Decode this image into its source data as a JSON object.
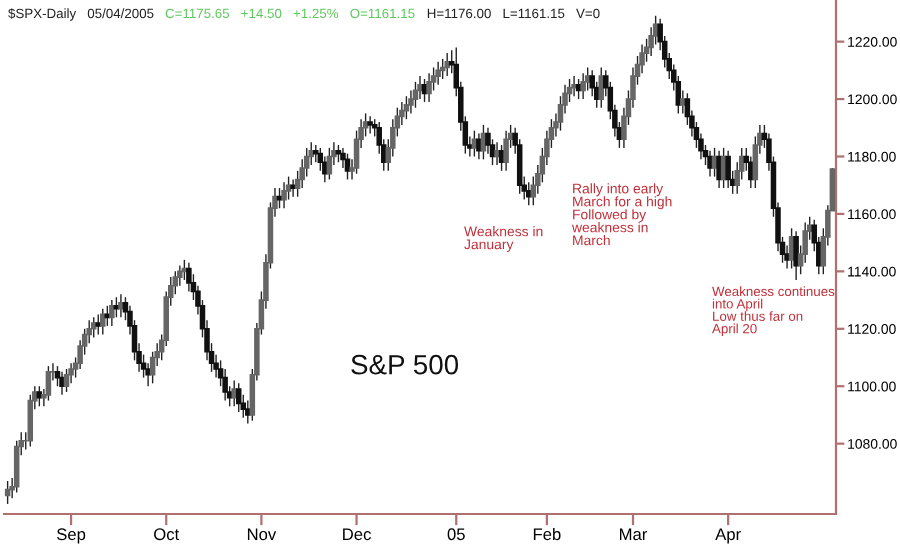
{
  "chart_data": {
    "type": "candlestick",
    "title": "$SPX-Daily   05/04/2005",
    "subtitle": "C=1175.65   +14.50   +1.25%   O=1161.15",
    "annotations": [
      "H=1176.00   L=1161.15   V=0",
      "S&P 500",
      "Weakness in\nJanuary",
      "Rally into early\nMarch for a high\nFollowed by\nweakness in\nMarch",
      "Weakness continues\ninto April\nLow thus far on\nApril 20"
    ],
    "categories": [
      null,
      null,
      null,
      null,
      null,
      null,
      null,
      null,
      null,
      null,
      null,
      null,
      null,
      null,
      "Sep",
      null,
      null,
      null,
      null,
      null,
      null,
      null,
      null,
      null,
      null,
      null,
      null,
      null,
      null,
      null,
      null,
      null,
      null,
      null,
      null,
      "Oct",
      null,
      null,
      null,
      null,
      null,
      null,
      null,
      null,
      null,
      null,
      null,
      null,
      null,
      null,
      null,
      null,
      null,
      null,
      null,
      null,
      "Nov",
      null,
      null,
      null,
      null,
      null,
      null,
      null,
      null,
      null,
      null,
      null,
      null,
      null,
      null,
      null,
      null,
      null,
      null,
      null,
      null,
      "Dec",
      null,
      null,
      null,
      null,
      null,
      null,
      null,
      null,
      null,
      null,
      null,
      null,
      null,
      null,
      null,
      null,
      null,
      null,
      null,
      null,
      null,
      "05",
      null,
      null,
      null,
      null,
      null,
      null,
      null,
      null,
      null,
      null,
      null,
      null,
      null,
      null,
      null,
      null,
      null,
      null,
      null,
      "Feb",
      null,
      null,
      null,
      null,
      null,
      null,
      null,
      null,
      null,
      null,
      null,
      null,
      null,
      null,
      null,
      null,
      null,
      null,
      "Mar",
      null,
      null,
      null,
      null,
      null,
      null,
      null,
      null,
      null,
      null,
      null,
      null,
      null,
      null,
      null,
      null,
      null,
      null,
      null,
      null,
      "Apr",
      null,
      null,
      null,
      null,
      null,
      null,
      null,
      null,
      null,
      null,
      null,
      null,
      null,
      null,
      null,
      null,
      null,
      null,
      null,
      null,
      null,
      null,
      null
    ],
    "ohlc": [
      [
        1062,
        1067,
        1059,
        1064
      ],
      [
        1064,
        1068,
        1061,
        1065
      ],
      [
        1065,
        1081,
        1063,
        1079
      ],
      [
        1079,
        1084,
        1076,
        1081
      ],
      [
        1081,
        1084,
        1078,
        1081
      ],
      [
        1081,
        1097,
        1079,
        1095
      ],
      [
        1095,
        1100,
        1092,
        1098
      ],
      [
        1098,
        1100,
        1093,
        1096
      ],
      [
        1096,
        1099,
        1093,
        1097
      ],
      [
        1097,
        1107,
        1095,
        1105
      ],
      [
        1105,
        1108,
        1102,
        1105
      ],
      [
        1105,
        1107,
        1100,
        1103
      ],
      [
        1103,
        1105,
        1097,
        1100
      ],
      [
        1100,
        1106,
        1098,
        1104
      ],
      [
        1104,
        1108,
        1101,
        1106
      ],
      [
        1106,
        1110,
        1103,
        1108
      ],
      [
        1108,
        1116,
        1106,
        1114
      ],
      [
        1114,
        1120,
        1111,
        1118
      ],
      [
        1118,
        1123,
        1115,
        1120
      ],
      [
        1120,
        1124,
        1117,
        1122
      ],
      [
        1122,
        1125,
        1118,
        1121
      ],
      [
        1121,
        1127,
        1118,
        1125
      ],
      [
        1125,
        1128,
        1121,
        1124
      ],
      [
        1124,
        1130,
        1121,
        1128
      ],
      [
        1128,
        1131,
        1124,
        1127
      ],
      [
        1127,
        1132,
        1124,
        1129
      ],
      [
        1129,
        1131,
        1123,
        1126
      ],
      [
        1126,
        1128,
        1118,
        1121
      ],
      [
        1121,
        1123,
        1109,
        1112
      ],
      [
        1112,
        1115,
        1105,
        1108
      ],
      [
        1108,
        1111,
        1103,
        1106
      ],
      [
        1106,
        1108,
        1100,
        1104
      ],
      [
        1104,
        1112,
        1101,
        1110
      ],
      [
        1110,
        1115,
        1107,
        1112
      ],
      [
        1112,
        1118,
        1109,
        1116
      ],
      [
        1116,
        1133,
        1114,
        1131
      ],
      [
        1131,
        1138,
        1128,
        1135
      ],
      [
        1135,
        1140,
        1132,
        1138
      ],
      [
        1138,
        1142,
        1135,
        1140
      ],
      [
        1140,
        1144,
        1137,
        1141
      ],
      [
        1141,
        1143,
        1133,
        1136
      ],
      [
        1136,
        1139,
        1130,
        1133
      ],
      [
        1133,
        1135,
        1125,
        1128
      ],
      [
        1128,
        1130,
        1117,
        1120
      ],
      [
        1120,
        1123,
        1109,
        1112
      ],
      [
        1112,
        1115,
        1105,
        1108
      ],
      [
        1108,
        1111,
        1103,
        1106
      ],
      [
        1106,
        1109,
        1100,
        1103
      ],
      [
        1103,
        1106,
        1095,
        1098
      ],
      [
        1098,
        1100,
        1093,
        1096
      ],
      [
        1096,
        1102,
        1093,
        1099
      ],
      [
        1099,
        1101,
        1091,
        1094
      ],
      [
        1094,
        1097,
        1089,
        1092
      ],
      [
        1092,
        1095,
        1087,
        1090
      ],
      [
        1090,
        1106,
        1088,
        1104
      ],
      [
        1104,
        1122,
        1102,
        1120
      ],
      [
        1120,
        1133,
        1118,
        1130
      ],
      [
        1130,
        1146,
        1127,
        1143
      ],
      [
        1143,
        1164,
        1141,
        1162
      ],
      [
        1162,
        1169,
        1159,
        1166
      ],
      [
        1166,
        1169,
        1162,
        1165
      ],
      [
        1165,
        1171,
        1162,
        1168
      ],
      [
        1168,
        1173,
        1165,
        1170
      ],
      [
        1170,
        1172,
        1166,
        1169
      ],
      [
        1169,
        1175,
        1166,
        1172
      ],
      [
        1172,
        1179,
        1169,
        1176
      ],
      [
        1176,
        1183,
        1173,
        1180
      ],
      [
        1180,
        1185,
        1177,
        1182
      ],
      [
        1182,
        1184,
        1178,
        1181
      ],
      [
        1181,
        1183,
        1175,
        1178
      ],
      [
        1178,
        1180,
        1171,
        1174
      ],
      [
        1174,
        1183,
        1172,
        1180
      ],
      [
        1180,
        1185,
        1177,
        1182
      ],
      [
        1182,
        1184,
        1178,
        1181
      ],
      [
        1181,
        1183,
        1176,
        1179
      ],
      [
        1179,
        1181,
        1172,
        1175
      ],
      [
        1175,
        1179,
        1172,
        1176
      ],
      [
        1176,
        1189,
        1174,
        1186
      ],
      [
        1186,
        1193,
        1183,
        1190
      ],
      [
        1190,
        1195,
        1187,
        1192
      ],
      [
        1192,
        1194,
        1188,
        1191
      ],
      [
        1191,
        1193,
        1187,
        1190
      ],
      [
        1190,
        1192,
        1181,
        1184
      ],
      [
        1184,
        1186,
        1175,
        1178
      ],
      [
        1178,
        1186,
        1175,
        1183
      ],
      [
        1183,
        1193,
        1180,
        1190
      ],
      [
        1190,
        1197,
        1187,
        1194
      ],
      [
        1194,
        1199,
        1191,
        1196
      ],
      [
        1196,
        1201,
        1193,
        1198
      ],
      [
        1198,
        1203,
        1195,
        1200
      ],
      [
        1200,
        1206,
        1197,
        1203
      ],
      [
        1203,
        1208,
        1200,
        1205
      ],
      [
        1205,
        1207,
        1199,
        1202
      ],
      [
        1202,
        1209,
        1199,
        1206
      ],
      [
        1206,
        1211,
        1203,
        1208
      ],
      [
        1208,
        1213,
        1205,
        1210
      ],
      [
        1210,
        1214,
        1207,
        1211
      ],
      [
        1211,
        1216,
        1208,
        1213
      ],
      [
        1213,
        1217,
        1209,
        1212
      ],
      [
        1212,
        1218,
        1201,
        1204
      ],
      [
        1204,
        1206,
        1189,
        1192
      ],
      [
        1192,
        1194,
        1181,
        1184
      ],
      [
        1184,
        1187,
        1180,
        1183
      ],
      [
        1183,
        1189,
        1180,
        1186
      ],
      [
        1186,
        1188,
        1179,
        1182
      ],
      [
        1182,
        1191,
        1179,
        1188
      ],
      [
        1188,
        1190,
        1181,
        1184
      ],
      [
        1184,
        1186,
        1177,
        1180
      ],
      [
        1180,
        1185,
        1177,
        1182
      ],
      [
        1182,
        1184,
        1175,
        1178
      ],
      [
        1178,
        1189,
        1175,
        1186
      ],
      [
        1186,
        1191,
        1183,
        1188
      ],
      [
        1188,
        1190,
        1181,
        1184
      ],
      [
        1184,
        1186,
        1167,
        1170
      ],
      [
        1170,
        1173,
        1165,
        1168
      ],
      [
        1168,
        1171,
        1163,
        1166
      ],
      [
        1166,
        1173,
        1163,
        1170
      ],
      [
        1170,
        1177,
        1167,
        1174
      ],
      [
        1174,
        1183,
        1171,
        1180
      ],
      [
        1180,
        1189,
        1177,
        1186
      ],
      [
        1186,
        1193,
        1183,
        1190
      ],
      [
        1190,
        1195,
        1187,
        1192
      ],
      [
        1192,
        1201,
        1189,
        1198
      ],
      [
        1198,
        1205,
        1195,
        1202
      ],
      [
        1202,
        1207,
        1199,
        1204
      ],
      [
        1204,
        1208,
        1201,
        1205
      ],
      [
        1205,
        1207,
        1200,
        1203
      ],
      [
        1203,
        1209,
        1200,
        1206
      ],
      [
        1206,
        1211,
        1203,
        1208
      ],
      [
        1208,
        1210,
        1201,
        1204
      ],
      [
        1204,
        1206,
        1197,
        1200
      ],
      [
        1200,
        1211,
        1197,
        1208
      ],
      [
        1208,
        1210,
        1201,
        1204
      ],
      [
        1204,
        1206,
        1193,
        1196
      ],
      [
        1196,
        1198,
        1187,
        1190
      ],
      [
        1190,
        1192,
        1183,
        1186
      ],
      [
        1186,
        1197,
        1183,
        1194
      ],
      [
        1194,
        1203,
        1191,
        1200
      ],
      [
        1200,
        1211,
        1197,
        1208
      ],
      [
        1208,
        1215,
        1205,
        1212
      ],
      [
        1212,
        1219,
        1209,
        1216
      ],
      [
        1216,
        1221,
        1213,
        1218
      ],
      [
        1218,
        1225,
        1215,
        1222
      ],
      [
        1222,
        1229,
        1219,
        1226
      ],
      [
        1226,
        1228,
        1217,
        1220
      ],
      [
        1220,
        1222,
        1211,
        1214
      ],
      [
        1214,
        1216,
        1207,
        1210
      ],
      [
        1210,
        1212,
        1203,
        1206
      ],
      [
        1206,
        1208,
        1195,
        1198
      ],
      [
        1198,
        1203,
        1195,
        1200
      ],
      [
        1200,
        1202,
        1191,
        1194
      ],
      [
        1194,
        1196,
        1187,
        1190
      ],
      [
        1190,
        1192,
        1183,
        1186
      ],
      [
        1186,
        1188,
        1179,
        1182
      ],
      [
        1182,
        1184,
        1177,
        1180
      ],
      [
        1180,
        1182,
        1173,
        1176
      ],
      [
        1176,
        1183,
        1173,
        1180
      ],
      [
        1180,
        1182,
        1169,
        1172
      ],
      [
        1172,
        1183,
        1169,
        1180
      ],
      [
        1180,
        1182,
        1169,
        1172
      ],
      [
        1172,
        1175,
        1167,
        1170
      ],
      [
        1170,
        1178,
        1167,
        1175
      ],
      [
        1175,
        1183,
        1172,
        1180
      ],
      [
        1180,
        1183,
        1175,
        1178
      ],
      [
        1178,
        1180,
        1169,
        1172
      ],
      [
        1172,
        1187,
        1169,
        1184
      ],
      [
        1184,
        1191,
        1181,
        1188
      ],
      [
        1188,
        1191,
        1183,
        1186
      ],
      [
        1186,
        1188,
        1175,
        1178
      ],
      [
        1178,
        1180,
        1159,
        1162
      ],
      [
        1162,
        1164,
        1147,
        1150
      ],
      [
        1150,
        1152,
        1143,
        1146
      ],
      [
        1146,
        1149,
        1141,
        1144
      ],
      [
        1144,
        1155,
        1141,
        1152
      ],
      [
        1152,
        1154,
        1137,
        1142
      ],
      [
        1142,
        1149,
        1139,
        1146
      ],
      [
        1146,
        1157,
        1143,
        1154
      ],
      [
        1154,
        1159,
        1151,
        1156
      ],
      [
        1156,
        1158,
        1147,
        1150
      ],
      [
        1150,
        1152,
        1139,
        1142
      ],
      [
        1142,
        1155,
        1139,
        1152
      ],
      [
        1152,
        1163,
        1149,
        1161.15
      ],
      [
        1161.15,
        1176,
        1161.15,
        1175.65
      ]
    ],
    "ylim": [
      1055.5,
      1234.5
    ],
    "yticks": [
      {
        "value": 1080,
        "label": "1080.00"
      },
      {
        "value": 1100,
        "label": "1100.00"
      },
      {
        "value": 1120,
        "label": "1120.00"
      },
      {
        "value": 1140,
        "label": "1140.00"
      },
      {
        "value": 1160,
        "label": "1160.00"
      },
      {
        "value": 1180,
        "label": "1180.00"
      },
      {
        "value": 1200,
        "label": "1200.00"
      },
      {
        "value": 1220,
        "label": "1220.00"
      }
    ],
    "grid": false
  }
}
